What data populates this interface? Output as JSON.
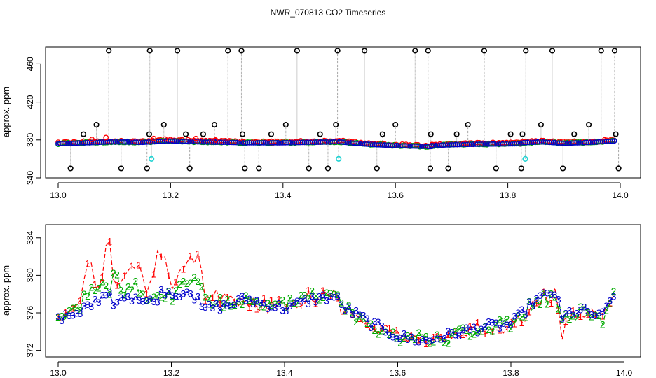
{
  "figure_title": "NWR_070813  CO2 Timeseries",
  "colors": {
    "flag_markers": "#000000",
    "special_markers": "#22d3d3",
    "drop_lines": "#9a9a9a",
    "series_1": "#ff0000",
    "series_2": "#00aa00",
    "series_3": "#0000cc"
  },
  "chart_data": [
    {
      "type": "scatter",
      "title": "NWR_070813  CO2 Timeseries",
      "xlabel": "",
      "ylabel": "approx. ppm",
      "xlim": [
        13.0,
        14.0
      ],
      "ylim": [
        340,
        478
      ],
      "x_ticks": [
        13.0,
        13.2,
        13.4,
        13.6,
        13.8,
        14.0
      ],
      "x_tick_labels": [
        "13.0",
        "13.2",
        "13.4",
        "13.6",
        "13.8",
        "14.0"
      ],
      "y_ticks": [
        340,
        380,
        420,
        460
      ],
      "y_tick_labels": [
        "340",
        "380",
        "420",
        "460"
      ],
      "baseline_segments": [
        {
          "x": [
            13.0,
            13.05,
            13.1,
            13.15,
            13.2,
            13.25,
            13.3,
            13.33
          ],
          "y": [
            376.0,
            377.0,
            378.0,
            377.5,
            379.0,
            378.0,
            377.5,
            377.0
          ]
        },
        {
          "x": [
            13.33,
            13.4,
            13.45,
            13.495
          ],
          "y": [
            377.0,
            377.0,
            377.5,
            378.0
          ]
        },
        {
          "x": [
            13.5,
            13.55,
            13.6,
            13.665
          ],
          "y": [
            378.0,
            375.5,
            374.0,
            373.0
          ]
        },
        {
          "x": [
            13.665,
            13.7,
            13.75,
            13.825
          ],
          "y": [
            374.0,
            375.0,
            375.5,
            376.0
          ]
        },
        {
          "x": [
            13.825,
            13.86,
            13.9,
            13.95,
            13.99
          ],
          "y": [
            377.0,
            378.0,
            376.5,
            377.5,
            379.0
          ]
        }
      ],
      "flags_high": {
        "x": [
          13.09,
          13.163,
          13.212,
          13.302,
          13.326,
          13.425,
          13.497,
          13.545,
          13.635,
          13.658,
          13.758,
          13.832,
          13.879,
          13.966,
          13.99
        ],
        "y": 474
      },
      "flags_upper": {
        "x": [
          13.045,
          13.068,
          13.162,
          13.188,
          13.227,
          13.258,
          13.278,
          13.328,
          13.379,
          13.405,
          13.466,
          13.494,
          13.577,
          13.6,
          13.663,
          13.709,
          13.729,
          13.805,
          13.826,
          13.859,
          13.918,
          13.944,
          13.992
        ],
        "y": [
          386,
          396,
          386,
          396,
          386,
          386,
          396,
          386,
          386,
          396,
          386,
          396,
          386,
          396,
          386,
          386,
          396,
          386,
          386,
          396,
          386,
          396,
          386
        ]
      },
      "flags_low": {
        "x": [
          13.022,
          13.112,
          13.158,
          13.234,
          13.332,
          13.357,
          13.446,
          13.48,
          13.567,
          13.662,
          13.694,
          13.779,
          13.824,
          13.898,
          13.997
        ],
        "y": 350
      },
      "special_points": {
        "x": [
          13.166,
          13.499,
          13.831
        ],
        "y": [
          360,
          360,
          360
        ]
      }
    },
    {
      "type": "line",
      "title": "",
      "xlabel": "",
      "ylabel": "approx. ppm",
      "xlim": [
        13.0,
        14.0
      ],
      "ylim": [
        371.3,
        385.4
      ],
      "x_ticks": [
        13.0,
        13.2,
        13.4,
        13.6,
        13.8,
        14.0
      ],
      "x_tick_labels": [
        "13.0",
        "13.2",
        "13.4",
        "13.6",
        "13.8",
        "14.0"
      ],
      "y_ticks": [
        372,
        376,
        380,
        384
      ],
      "y_tick_labels": [
        "372",
        "376",
        "380",
        "384"
      ],
      "x_range": [
        13.0,
        13.985
      ],
      "series": [
        {
          "name": "1",
          "marker": "1",
          "x": [
            13.0,
            13.02,
            13.04,
            13.055,
            13.07,
            13.09,
            13.1,
            13.12,
            13.14,
            13.16,
            13.175,
            13.185,
            13.2,
            13.22,
            13.245,
            13.26,
            13.3,
            13.33,
            13.4,
            13.45,
            13.49,
            13.5,
            13.55,
            13.6,
            13.65,
            13.7,
            13.75,
            13.8,
            13.84,
            13.865,
            13.88,
            13.89,
            13.9,
            13.93,
            13.96,
            13.985
          ],
          "y": [
            375.5,
            376.5,
            377.5,
            382.0,
            378.5,
            384.0,
            378.0,
            379.5,
            381.0,
            378.0,
            383.0,
            382.5,
            378.5,
            380.5,
            382.5,
            378.0,
            377.5,
            377.2,
            376.5,
            377.8,
            378.5,
            376.5,
            374.5,
            373.8,
            373.0,
            373.5,
            374.5,
            374.8,
            376.5,
            377.8,
            378.0,
            373.0,
            375.5,
            376.0,
            375.5,
            379.0
          ]
        },
        {
          "name": "2",
          "marker": "2",
          "x": [
            13.0,
            13.02,
            13.04,
            13.055,
            13.07,
            13.09,
            13.1,
            13.12,
            13.14,
            13.16,
            13.175,
            13.185,
            13.2,
            13.22,
            13.245,
            13.26,
            13.3,
            13.33,
            13.4,
            13.45,
            13.49,
            13.5,
            13.55,
            13.6,
            13.65,
            13.7,
            13.75,
            13.8,
            13.84,
            13.865,
            13.88,
            13.89,
            13.9,
            13.93,
            13.96,
            13.985
          ],
          "y": [
            375.6,
            376.3,
            377.0,
            378.5,
            379.0,
            378.5,
            380.0,
            378.0,
            379.0,
            377.5,
            378.5,
            378.0,
            377.5,
            379.5,
            380.0,
            377.0,
            377.0,
            377.5,
            376.8,
            377.8,
            378.0,
            376.8,
            374.5,
            373.5,
            373.2,
            373.5,
            374.3,
            374.8,
            377.0,
            377.5,
            377.8,
            375.0,
            376.0,
            376.2,
            375.0,
            378.7
          ]
        },
        {
          "name": "3",
          "marker": "3",
          "x": [
            13.0,
            13.02,
            13.04,
            13.055,
            13.07,
            13.09,
            13.1,
            13.12,
            13.14,
            13.16,
            13.175,
            13.185,
            13.2,
            13.22,
            13.245,
            13.26,
            13.3,
            13.33,
            13.4,
            13.45,
            13.49,
            13.5,
            13.55,
            13.6,
            13.65,
            13.7,
            13.75,
            13.8,
            13.84,
            13.865,
            13.88,
            13.89,
            13.9,
            13.93,
            13.96,
            13.985
          ],
          "y": [
            375.5,
            376.0,
            376.3,
            377.0,
            377.5,
            377.8,
            377.0,
            377.8,
            377.5,
            377.0,
            377.3,
            378.5,
            378.0,
            378.0,
            377.5,
            376.5,
            376.8,
            377.5,
            376.5,
            377.5,
            377.8,
            376.8,
            375.0,
            373.5,
            373.0,
            373.8,
            374.5,
            374.8,
            377.2,
            378.0,
            378.2,
            375.2,
            376.0,
            376.2,
            375.5,
            378.5
          ]
        }
      ]
    }
  ]
}
